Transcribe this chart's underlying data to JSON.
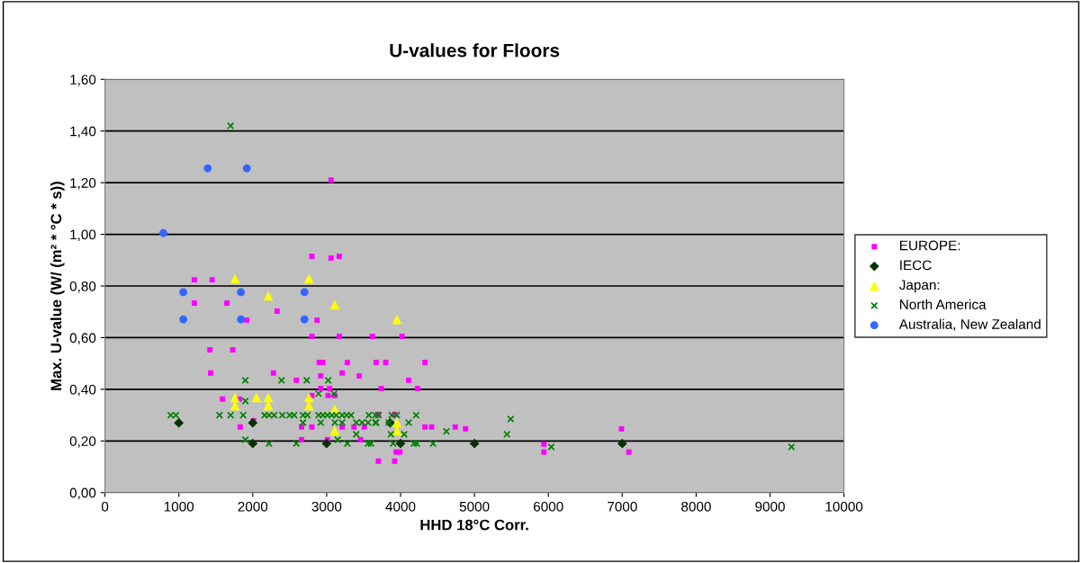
{
  "chart_data": {
    "type": "scatter",
    "title": "U-values for Floors",
    "xlabel": "HHD 18°C Corr.",
    "ylabel": "Max. U-value (W/ (m² * °C * s))",
    "xlim": [
      0,
      10000
    ],
    "xticks": [
      0,
      1000,
      2000,
      3000,
      4000,
      5000,
      6000,
      7000,
      8000,
      9000,
      10000
    ],
    "ylim": [
      0,
      1.6
    ],
    "yticks": [
      {
        "value": 0,
        "label": "0,00"
      },
      {
        "value": 0.2,
        "label": "0,20"
      },
      {
        "value": 0.4,
        "label": "0,40"
      },
      {
        "value": 0.6,
        "label": "0,60"
      },
      {
        "value": 0.8,
        "label": "0,80"
      },
      {
        "value": 1.0,
        "label": "1,00"
      },
      {
        "value": 1.2,
        "label": "1,20"
      },
      {
        "value": 1.4,
        "label": "1,40"
      },
      {
        "value": 1.6,
        "label": "1,60"
      }
    ],
    "grid": "y",
    "legend": "right",
    "series": [
      {
        "name": "EUROPE:",
        "color": "#ff00ff",
        "marker": "square",
        "x": [
          3060,
          2800,
          3060,
          3170,
          1210,
          1450,
          1210,
          1650,
          2330,
          1920,
          2870,
          2800,
          3170,
          3620,
          1420,
          1730,
          2900,
          2950,
          3280,
          1430,
          2280,
          2920,
          3210,
          3440,
          2590,
          2920,
          3040,
          1590,
          1820,
          2800,
          3020,
          3110,
          1830,
          2660,
          2800,
          3210,
          3370,
          3510,
          2660,
          3010,
          3460,
          4020,
          3670,
          3800,
          4330,
          4110,
          3740,
          4230,
          3700,
          3920,
          4330,
          4420,
          4740,
          4880,
          3940,
          3990,
          3700,
          3920,
          6990,
          5940,
          5940,
          7090,
          2010
        ],
        "values": [
          1.21,
          0.915,
          0.908,
          0.915,
          0.824,
          0.824,
          0.734,
          0.734,
          0.703,
          0.668,
          0.668,
          0.605,
          0.605,
          0.605,
          0.553,
          0.553,
          0.504,
          0.504,
          0.504,
          0.463,
          0.463,
          0.452,
          0.463,
          0.452,
          0.435,
          0.403,
          0.403,
          0.362,
          0.362,
          0.376,
          0.376,
          0.376,
          0.254,
          0.254,
          0.254,
          0.254,
          0.254,
          0.254,
          0.205,
          0.205,
          0.205,
          0.605,
          0.504,
          0.504,
          0.504,
          0.435,
          0.403,
          0.403,
          0.303,
          0.303,
          0.254,
          0.254,
          0.254,
          0.247,
          0.157,
          0.157,
          0.122,
          0.122,
          0.247,
          0.188,
          0.157,
          0.157,
          0.278
        ]
      },
      {
        "name": "IECC",
        "color": "#003300",
        "marker": "diamond",
        "x": [
          1000,
          2000,
          2000,
          3000,
          3860,
          4000,
          5000,
          7000
        ],
        "values": [
          0.27,
          0.27,
          0.19,
          0.19,
          0.27,
          0.19,
          0.19,
          0.19
        ]
      },
      {
        "name": "Japan:",
        "color": "#ffff00",
        "marker": "triangle",
        "x": [
          1760,
          2760,
          2210,
          3110,
          3950,
          1760,
          1760,
          2050,
          2210,
          2210,
          2760,
          2760,
          3110,
          3110,
          3950,
          3950
        ],
        "values": [
          0.828,
          0.828,
          0.762,
          0.727,
          0.671,
          0.369,
          0.337,
          0.369,
          0.369,
          0.337,
          0.369,
          0.337,
          0.323,
          0.24,
          0.271,
          0.24
        ]
      },
      {
        "name": "North America",
        "color": "#008000",
        "marker": "cross",
        "x": [
          1700,
          1900,
          2390,
          2730,
          3020,
          1900,
          2890,
          3100,
          890,
          960,
          1550,
          1700,
          1870,
          2160,
          2220,
          2290,
          2400,
          2500,
          2560,
          2680,
          2740,
          2890,
          2950,
          3010,
          3070,
          3130,
          3210,
          3270,
          3330,
          3570,
          3660,
          3700,
          3880,
          3950,
          4210,
          2680,
          2920,
          3110,
          3210,
          3400,
          3480,
          3560,
          3660,
          3670,
          3840,
          4110,
          3400,
          3870,
          4050,
          1900,
          3150,
          2220,
          2590,
          3280,
          3560,
          3600,
          3900,
          4180,
          4220,
          4440,
          4620,
          5440,
          5490,
          6040,
          9290
        ],
        "values": [
          1.42,
          0.435,
          0.435,
          0.435,
          0.435,
          0.355,
          0.383,
          0.383,
          0.3,
          0.3,
          0.3,
          0.3,
          0.3,
          0.3,
          0.3,
          0.3,
          0.3,
          0.3,
          0.3,
          0.3,
          0.3,
          0.3,
          0.3,
          0.3,
          0.3,
          0.3,
          0.3,
          0.3,
          0.3,
          0.3,
          0.3,
          0.3,
          0.3,
          0.3,
          0.3,
          0.271,
          0.271,
          0.271,
          0.271,
          0.271,
          0.271,
          0.271,
          0.271,
          0.271,
          0.271,
          0.271,
          0.226,
          0.226,
          0.226,
          0.205,
          0.205,
          0.19,
          0.19,
          0.19,
          0.19,
          0.19,
          0.19,
          0.19,
          0.19,
          0.19,
          0.237,
          0.226,
          0.285,
          0.177,
          0.177
        ]
      },
      {
        "name": "Australia, New Zealand",
        "color": "#3366ff",
        "marker": "circle",
        "x": [
          790,
          1390,
          1920,
          1060,
          1060,
          1840,
          1840,
          2700,
          2700
        ],
        "values": [
          1.005,
          1.256,
          1.256,
          0.776,
          0.671,
          0.776,
          0.671,
          0.776,
          0.671
        ]
      }
    ]
  }
}
